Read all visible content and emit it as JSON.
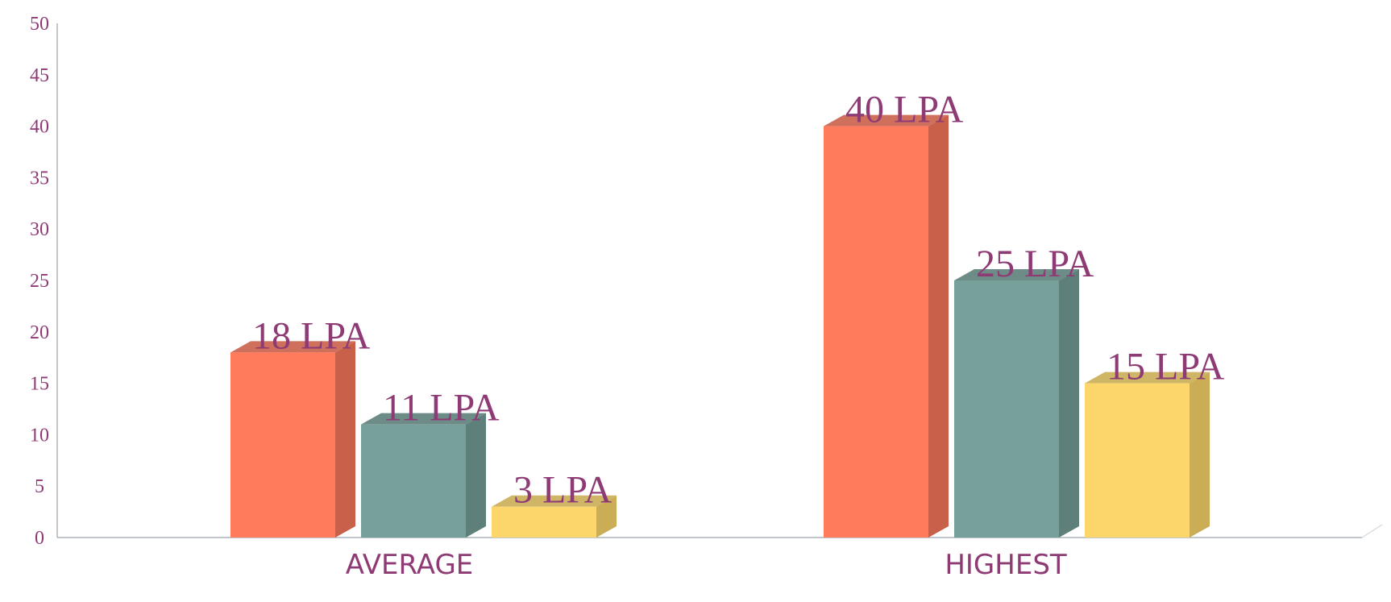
{
  "chart_data": {
    "type": "bar",
    "style": "3d-clustered-column",
    "categories": [
      "AVERAGE",
      "HIGHEST"
    ],
    "series": [
      {
        "values": [
          18,
          40
        ],
        "labels": [
          "18 LPA",
          "40 LPA"
        ],
        "color": "#ff7b5c",
        "side_color": "#c96049"
      },
      {
        "values": [
          11,
          25
        ],
        "labels": [
          "11 LPA",
          "25 LPA"
        ],
        "color": "#77a09b",
        "side_color": "#5e7f7a"
      },
      {
        "values": [
          3,
          15
        ],
        "labels": [
          "3 LPA",
          "15 LPA"
        ],
        "color": "#fdd66b",
        "side_color": "#caad55"
      }
    ],
    "y_ticks": [
      "0",
      "5",
      "10",
      "15",
      "20",
      "25",
      "30",
      "35",
      "40",
      "45",
      "50"
    ],
    "ylim": [
      0,
      50
    ],
    "grid": false,
    "legend": "none",
    "title": "",
    "xlabel": "",
    "ylabel": "",
    "text_color": "#8e3b75",
    "axis_color": "#9aa5ad"
  }
}
